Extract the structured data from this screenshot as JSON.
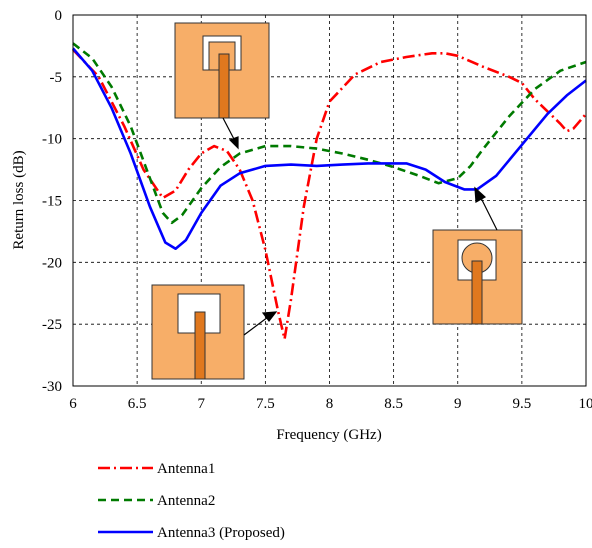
{
  "chart_data": {
    "type": "line",
    "xlabel": "Frequency (GHz)",
    "ylabel": "Return loss (dB)",
    "xlim": [
      6,
      10
    ],
    "ylim": [
      -30,
      0
    ],
    "x_ticks": [
      "6",
      "6.5",
      "7",
      "7.5",
      "8",
      "8.5",
      "9",
      "9.5",
      "10"
    ],
    "y_ticks": [
      "0",
      "-5",
      "-10",
      "-15",
      "-20",
      "-25",
      "-30"
    ],
    "grid": true,
    "legend_position": "below plot",
    "series": [
      {
        "name": "Antenna1",
        "color": "#ff0000",
        "style": "dash-dot",
        "points": [
          [
            6,
            -2.8
          ],
          [
            6.2,
            -5
          ],
          [
            6.4,
            -9
          ],
          [
            6.55,
            -12.5
          ],
          [
            6.7,
            -14.8
          ],
          [
            6.8,
            -14.2
          ],
          [
            6.9,
            -12.5
          ],
          [
            7.0,
            -11.2
          ],
          [
            7.1,
            -10.6
          ],
          [
            7.2,
            -11
          ],
          [
            7.3,
            -12.5
          ],
          [
            7.4,
            -15
          ],
          [
            7.5,
            -19
          ],
          [
            7.6,
            -24
          ],
          [
            7.65,
            -26.2
          ],
          [
            7.7,
            -23
          ],
          [
            7.8,
            -15.5
          ],
          [
            7.9,
            -10
          ],
          [
            8.0,
            -7
          ],
          [
            8.2,
            -4.8
          ],
          [
            8.4,
            -3.8
          ],
          [
            8.6,
            -3.4
          ],
          [
            8.8,
            -3.1
          ],
          [
            8.9,
            -3.1
          ],
          [
            9.0,
            -3.3
          ],
          [
            9.2,
            -4.2
          ],
          [
            9.4,
            -5
          ],
          [
            9.5,
            -5.5
          ],
          [
            9.6,
            -6.8
          ],
          [
            9.8,
            -8.8
          ],
          [
            9.85,
            -9.4
          ],
          [
            9.9,
            -9.2
          ],
          [
            10.0,
            -8
          ]
        ]
      },
      {
        "name": "Antenna2",
        "color": "#007a00",
        "style": "dashed",
        "points": [
          [
            6,
            -2.3
          ],
          [
            6.15,
            -3.5
          ],
          [
            6.3,
            -5.8
          ],
          [
            6.45,
            -9
          ],
          [
            6.6,
            -13.2
          ],
          [
            6.7,
            -16
          ],
          [
            6.77,
            -16.8
          ],
          [
            6.85,
            -16.2
          ],
          [
            7.0,
            -14
          ],
          [
            7.15,
            -12.3
          ],
          [
            7.3,
            -11.2
          ],
          [
            7.5,
            -10.6
          ],
          [
            7.7,
            -10.6
          ],
          [
            7.9,
            -10.8
          ],
          [
            8.1,
            -11.2
          ],
          [
            8.3,
            -11.7
          ],
          [
            8.5,
            -12.3
          ],
          [
            8.7,
            -13
          ],
          [
            8.85,
            -13.6
          ],
          [
            9.0,
            -13.2
          ],
          [
            9.1,
            -12.2
          ],
          [
            9.2,
            -10.8
          ],
          [
            9.4,
            -8.2
          ],
          [
            9.6,
            -6
          ],
          [
            9.8,
            -4.5
          ],
          [
            10.0,
            -3.8
          ]
        ]
      },
      {
        "name": "Antenna3 (Proposed)",
        "color": "#0000ff",
        "style": "solid",
        "points": [
          [
            6,
            -2.7
          ],
          [
            6.15,
            -4.5
          ],
          [
            6.3,
            -7.5
          ],
          [
            6.45,
            -11.2
          ],
          [
            6.6,
            -15.5
          ],
          [
            6.72,
            -18.4
          ],
          [
            6.8,
            -18.9
          ],
          [
            6.88,
            -18.2
          ],
          [
            7.0,
            -16
          ],
          [
            7.15,
            -13.8
          ],
          [
            7.3,
            -12.8
          ],
          [
            7.5,
            -12.2
          ],
          [
            7.7,
            -12.1
          ],
          [
            7.9,
            -12.2
          ],
          [
            8.1,
            -12.1
          ],
          [
            8.3,
            -12
          ],
          [
            8.6,
            -12
          ],
          [
            8.75,
            -12.5
          ],
          [
            8.9,
            -13.5
          ],
          [
            9.05,
            -14.1
          ],
          [
            9.15,
            -14.1
          ],
          [
            9.3,
            -13
          ],
          [
            9.5,
            -10.5
          ],
          [
            9.7,
            -8
          ],
          [
            9.85,
            -6.5
          ],
          [
            10.0,
            -5.3
          ]
        ]
      }
    ],
    "inset_images": [
      "antenna1-layout",
      "antenna2-layout",
      "antenna3-layout"
    ]
  },
  "legend": {
    "items": [
      {
        "label": "Antenna1",
        "color": "#ff0000",
        "dash": "12 4 2 4"
      },
      {
        "label": "Antenna2",
        "color": "#007a00",
        "dash": "8 5"
      },
      {
        "label": "Antenna3 (Proposed)",
        "color": "#0000ff",
        "dash": ""
      }
    ]
  }
}
